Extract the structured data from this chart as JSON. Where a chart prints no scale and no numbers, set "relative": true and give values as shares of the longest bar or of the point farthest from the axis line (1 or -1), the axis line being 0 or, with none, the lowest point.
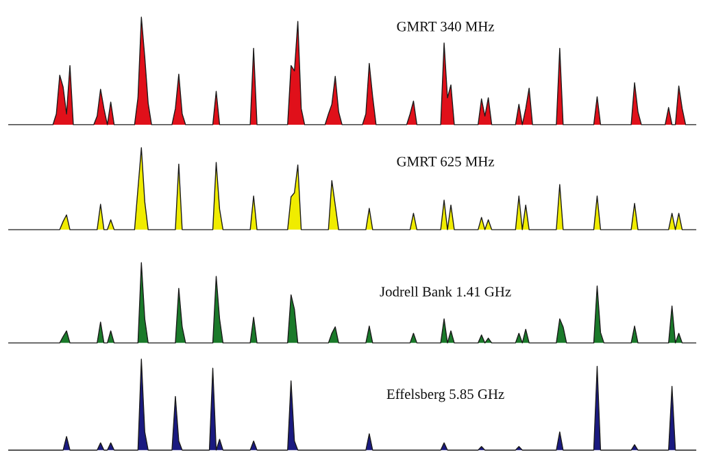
{
  "chart_data": [
    {
      "type": "area",
      "title": "GMRT 340 MHz",
      "relative": true,
      "color": "#e0101a",
      "categories": [
        null,
        null,
        null,
        null,
        null,
        null,
        null,
        null,
        null,
        null,
        null,
        null,
        null,
        null,
        null,
        null,
        null,
        null,
        null,
        null,
        null,
        null,
        null,
        null,
        null,
        null,
        null,
        null,
        null,
        null,
        null,
        null,
        null,
        null,
        null,
        null,
        null,
        null,
        null,
        null,
        null,
        null,
        null,
        null,
        null,
        null,
        null,
        null,
        null,
        null,
        null,
        null,
        null,
        null,
        null,
        null,
        null,
        null,
        null,
        null,
        null,
        null,
        null,
        null,
        null,
        null,
        null,
        null,
        null,
        null,
        null,
        null,
        null,
        null,
        null,
        null,
        null,
        null,
        null,
        null,
        null,
        null,
        null,
        null,
        null,
        null,
        null,
        null,
        null,
        null,
        null,
        null,
        null,
        null,
        null,
        null,
        null,
        null,
        null,
        null,
        null,
        null,
        null,
        null,
        null,
        null,
        null,
        null,
        null,
        null,
        null,
        null,
        null,
        null,
        null,
        null,
        null,
        null,
        null,
        null,
        null,
        null,
        null,
        null,
        null,
        null,
        null,
        null,
        null,
        null,
        null,
        null,
        null,
        null,
        null,
        null,
        null,
        null,
        null,
        null,
        null,
        null,
        null,
        null,
        null,
        null,
        null,
        null,
        null,
        null,
        null,
        null,
        null,
        null,
        null,
        null,
        null,
        null,
        null,
        null,
        null,
        null,
        null,
        null,
        null,
        null,
        null,
        null,
        null,
        null,
        null,
        null,
        null,
        null,
        null,
        null,
        null,
        null,
        null,
        null,
        null,
        null,
        null,
        null,
        null,
        null,
        null,
        null,
        null,
        null,
        null,
        null,
        null,
        null,
        null,
        null,
        null,
        null,
        null,
        null,
        null,
        null,
        null
      ],
      "values": [
        0,
        0,
        0,
        0,
        0,
        0,
        0,
        0,
        0,
        0,
        0,
        0,
        0,
        0,
        0.1,
        0.46,
        0.35,
        0.1,
        0.55,
        0,
        0,
        0,
        0,
        0,
        0,
        0,
        0.08,
        0.33,
        0.15,
        0,
        0.21,
        0,
        0,
        0,
        0,
        0,
        0,
        0,
        0.25,
        1,
        0.63,
        0.2,
        0,
        0,
        0,
        0,
        0,
        0,
        0,
        0.15,
        0.47,
        0.1,
        0,
        0,
        0,
        0,
        0,
        0,
        0,
        0,
        0,
        0.31,
        0,
        0,
        0,
        0,
        0,
        0,
        0,
        0,
        0,
        0,
        0.71,
        0,
        0,
        0,
        0,
        0,
        0,
        0,
        0,
        0,
        0,
        0.55,
        0.5,
        0.96,
        0.15,
        0,
        0,
        0,
        0,
        0,
        0,
        0,
        0.1,
        0.19,
        0.45,
        0.12,
        0,
        0,
        0,
        0,
        0,
        0,
        0,
        0.1,
        0.57,
        0.26,
        0,
        0,
        0,
        0,
        0,
        0,
        0,
        0,
        0,
        0,
        0.1,
        0.22,
        0,
        0,
        0,
        0,
        0,
        0,
        0,
        0,
        0.76,
        0.25,
        0.37,
        0,
        0,
        0,
        0,
        0,
        0,
        0,
        0,
        0.24,
        0.08,
        0.25,
        0,
        0,
        0,
        0,
        0,
        0,
        0,
        0,
        0.19,
        0,
        0.15,
        0.34,
        0,
        0,
        0,
        0,
        0,
        0,
        0,
        0,
        0.71,
        0,
        0,
        0,
        0,
        0,
        0,
        0,
        0,
        0,
        0,
        0.26,
        0,
        0,
        0,
        0,
        0,
        0,
        0,
        0,
        0,
        0,
        0.39,
        0.12,
        0,
        0,
        0,
        0,
        0,
        0,
        0,
        0,
        0.16,
        0,
        0,
        0.36,
        0.15,
        0,
        0,
        0,
        0
      ]
    },
    {
      "type": "area",
      "title": "GMRT 625 MHz",
      "relative": true,
      "color": "#f0ec00",
      "categories": [
        null,
        null,
        null,
        null,
        null,
        null,
        null,
        null,
        null,
        null,
        null,
        null,
        null,
        null,
        null,
        null,
        null,
        null,
        null,
        null,
        null,
        null,
        null,
        null,
        null,
        null,
        null,
        null,
        null,
        null,
        null,
        null,
        null,
        null,
        null,
        null,
        null,
        null,
        null,
        null,
        null,
        null,
        null,
        null,
        null,
        null,
        null,
        null,
        null,
        null,
        null,
        null,
        null,
        null,
        null,
        null,
        null,
        null,
        null,
        null,
        null,
        null,
        null,
        null,
        null,
        null,
        null,
        null,
        null,
        null,
        null,
        null,
        null,
        null,
        null,
        null,
        null,
        null,
        null,
        null,
        null,
        null,
        null,
        null,
        null,
        null,
        null,
        null,
        null,
        null,
        null,
        null,
        null,
        null,
        null,
        null,
        null,
        null,
        null,
        null,
        null,
        null,
        null,
        null,
        null,
        null,
        null,
        null,
        null,
        null,
        null,
        null,
        null,
        null,
        null,
        null,
        null,
        null,
        null,
        null,
        null,
        null,
        null,
        null,
        null,
        null,
        null,
        null,
        null,
        null,
        null,
        null,
        null,
        null,
        null,
        null,
        null,
        null,
        null,
        null,
        null,
        null,
        null,
        null,
        null,
        null,
        null,
        null,
        null,
        null,
        null,
        null,
        null,
        null,
        null,
        null,
        null,
        null,
        null,
        null,
        null,
        null,
        null,
        null,
        null,
        null,
        null,
        null,
        null,
        null,
        null,
        null,
        null,
        null,
        null,
        null,
        null,
        null,
        null,
        null,
        null,
        null,
        null,
        null,
        null,
        null,
        null,
        null,
        null,
        null,
        null,
        null,
        null,
        null,
        null,
        null,
        null,
        null,
        null,
        null,
        null,
        null,
        null
      ],
      "values": [
        0,
        0,
        0,
        0,
        0,
        0,
        0,
        0,
        0,
        0,
        0,
        0,
        0,
        0,
        0,
        0,
        0.1,
        0.18,
        0,
        0,
        0,
        0,
        0,
        0,
        0,
        0,
        0,
        0.31,
        0,
        0,
        0.12,
        0,
        0,
        0,
        0,
        0,
        0,
        0,
        0.5,
        1,
        0.34,
        0,
        0,
        0,
        0,
        0,
        0,
        0,
        0,
        0,
        0.8,
        0,
        0,
        0,
        0,
        0,
        0,
        0,
        0,
        0,
        0,
        0.82,
        0.25,
        0,
        0,
        0,
        0,
        0,
        0,
        0,
        0,
        0,
        0.41,
        0,
        0,
        0,
        0,
        0,
        0,
        0,
        0,
        0,
        0,
        0.4,
        0.45,
        0.79,
        0,
        0,
        0,
        0,
        0,
        0,
        0,
        0,
        0,
        0.6,
        0.3,
        0,
        0,
        0,
        0,
        0,
        0,
        0,
        0,
        0,
        0.26,
        0,
        0,
        0,
        0,
        0,
        0,
        0,
        0,
        0,
        0,
        0,
        0,
        0.2,
        0,
        0,
        0,
        0,
        0,
        0,
        0,
        0,
        0.36,
        0,
        0.3,
        0,
        0,
        0,
        0,
        0,
        0,
        0,
        0,
        0.15,
        0,
        0.12,
        0,
        0,
        0,
        0,
        0,
        0,
        0,
        0,
        0.41,
        0,
        0.3,
        0,
        0,
        0,
        0,
        0,
        0,
        0,
        0,
        0,
        0.55,
        0,
        0,
        0,
        0,
        0,
        0,
        0,
        0,
        0,
        0,
        0.41,
        0,
        0,
        0,
        0,
        0,
        0,
        0,
        0,
        0,
        0,
        0.32,
        0,
        0,
        0,
        0,
        0,
        0,
        0,
        0,
        0,
        0,
        0.2,
        0,
        0.2,
        0,
        0,
        0,
        0,
        0
      ]
    },
    {
      "type": "area",
      "title": "Jodrell Bank 1.41 GHz",
      "relative": true,
      "color": "#1a7a2a",
      "categories": [
        null,
        null,
        null,
        null,
        null,
        null,
        null,
        null,
        null,
        null,
        null,
        null,
        null,
        null,
        null,
        null,
        null,
        null,
        null,
        null,
        null,
        null,
        null,
        null,
        null,
        null,
        null,
        null,
        null,
        null,
        null,
        null,
        null,
        null,
        null,
        null,
        null,
        null,
        null,
        null,
        null,
        null,
        null,
        null,
        null,
        null,
        null,
        null,
        null,
        null,
        null,
        null,
        null,
        null,
        null,
        null,
        null,
        null,
        null,
        null,
        null,
        null,
        null,
        null,
        null,
        null,
        null,
        null,
        null,
        null,
        null,
        null,
        null,
        null,
        null,
        null,
        null,
        null,
        null,
        null,
        null,
        null,
        null,
        null,
        null,
        null,
        null,
        null,
        null,
        null,
        null,
        null,
        null,
        null,
        null,
        null,
        null,
        null,
        null,
        null,
        null,
        null,
        null,
        null,
        null,
        null,
        null,
        null,
        null,
        null,
        null,
        null,
        null,
        null,
        null,
        null,
        null,
        null,
        null,
        null,
        null,
        null,
        null,
        null,
        null,
        null,
        null,
        null,
        null,
        null,
        null,
        null,
        null,
        null,
        null,
        null,
        null,
        null,
        null,
        null,
        null,
        null,
        null,
        null,
        null,
        null,
        null,
        null,
        null,
        null,
        null,
        null,
        null,
        null,
        null,
        null,
        null,
        null,
        null,
        null,
        null,
        null,
        null,
        null,
        null,
        null,
        null,
        null,
        null,
        null,
        null,
        null,
        null,
        null,
        null,
        null,
        null,
        null,
        null,
        null,
        null,
        null,
        null,
        null,
        null,
        null,
        null,
        null,
        null,
        null,
        null,
        null,
        null,
        null,
        null,
        null,
        null,
        null,
        null,
        null,
        null,
        null,
        null
      ],
      "values": [
        0,
        0,
        0,
        0,
        0,
        0,
        0,
        0,
        0,
        0,
        0,
        0,
        0,
        0,
        0,
        0,
        0.08,
        0.15,
        0,
        0,
        0,
        0,
        0,
        0,
        0,
        0,
        0,
        0.26,
        0,
        0,
        0.15,
        0,
        0,
        0,
        0,
        0,
        0,
        0,
        0,
        1,
        0.3,
        0,
        0,
        0,
        0,
        0,
        0,
        0,
        0,
        0,
        0.68,
        0.2,
        0,
        0,
        0,
        0,
        0,
        0,
        0,
        0,
        0,
        0.83,
        0.3,
        0,
        0,
        0,
        0,
        0,
        0,
        0,
        0,
        0,
        0.32,
        0,
        0,
        0,
        0,
        0,
        0,
        0,
        0,
        0,
        0,
        0.6,
        0.42,
        0,
        0,
        0,
        0,
        0,
        0,
        0,
        0,
        0,
        0,
        0.12,
        0.2,
        0,
        0,
        0,
        0,
        0,
        0,
        0,
        0,
        0,
        0.21,
        0,
        0,
        0,
        0,
        0,
        0,
        0,
        0,
        0,
        0,
        0,
        0,
        0.12,
        0,
        0,
        0,
        0,
        0,
        0,
        0,
        0,
        0.3,
        0,
        0.15,
        0,
        0,
        0,
        0,
        0,
        0,
        0,
        0,
        0.1,
        0,
        0.06,
        0,
        0,
        0,
        0,
        0,
        0,
        0,
        0,
        0.12,
        0,
        0.17,
        0,
        0,
        0,
        0,
        0,
        0,
        0,
        0,
        0,
        0.3,
        0.2,
        0,
        0,
        0,
        0,
        0,
        0,
        0,
        0,
        0,
        0.71,
        0.13,
        0,
        0,
        0,
        0,
        0,
        0,
        0,
        0,
        0,
        0.21,
        0,
        0,
        0,
        0,
        0,
        0,
        0,
        0,
        0,
        0,
        0.46,
        0,
        0.12,
        0,
        0,
        0,
        0,
        0
      ]
    },
    {
      "type": "area",
      "title": "Effelsberg 5.85 GHz",
      "relative": true,
      "color": "#1a1a80",
      "categories": [
        null,
        null,
        null,
        null,
        null,
        null,
        null,
        null,
        null,
        null,
        null,
        null,
        null,
        null,
        null,
        null,
        null,
        null,
        null,
        null,
        null,
        null,
        null,
        null,
        null,
        null,
        null,
        null,
        null,
        null,
        null,
        null,
        null,
        null,
        null,
        null,
        null,
        null,
        null,
        null,
        null,
        null,
        null,
        null,
        null,
        null,
        null,
        null,
        null,
        null,
        null,
        null,
        null,
        null,
        null,
        null,
        null,
        null,
        null,
        null,
        null,
        null,
        null,
        null,
        null,
        null,
        null,
        null,
        null,
        null,
        null,
        null,
        null,
        null,
        null,
        null,
        null,
        null,
        null,
        null,
        null,
        null,
        null,
        null,
        null,
        null,
        null,
        null,
        null,
        null,
        null,
        null,
        null,
        null,
        null,
        null,
        null,
        null,
        null,
        null,
        null,
        null,
        null,
        null,
        null,
        null,
        null,
        null,
        null,
        null,
        null,
        null,
        null,
        null,
        null,
        null,
        null,
        null,
        null,
        null,
        null,
        null,
        null,
        null,
        null,
        null,
        null,
        null,
        null,
        null,
        null,
        null,
        null,
        null,
        null,
        null,
        null,
        null,
        null,
        null,
        null,
        null,
        null,
        null,
        null,
        null,
        null,
        null,
        null,
        null,
        null,
        null,
        null,
        null,
        null,
        null,
        null,
        null,
        null,
        null,
        null,
        null,
        null,
        null,
        null,
        null,
        null,
        null,
        null,
        null,
        null,
        null,
        null,
        null,
        null,
        null,
        null,
        null,
        null,
        null,
        null,
        null,
        null,
        null,
        null,
        null,
        null,
        null,
        null,
        null,
        null,
        null,
        null,
        null,
        null,
        null,
        null,
        null,
        null,
        null,
        null,
        null,
        null
      ],
      "values": [
        0,
        0,
        0,
        0,
        0,
        0,
        0,
        0,
        0,
        0,
        0,
        0,
        0,
        0,
        0,
        0,
        0,
        0.15,
        0,
        0,
        0,
        0,
        0,
        0,
        0,
        0,
        0,
        0.08,
        0,
        0,
        0.08,
        0,
        0,
        0,
        0,
        0,
        0,
        0,
        0,
        1,
        0.2,
        0,
        0,
        0,
        0,
        0,
        0,
        0,
        0,
        0.59,
        0.1,
        0,
        0,
        0,
        0,
        0,
        0,
        0,
        0,
        0,
        0.9,
        0,
        0.12,
        0,
        0,
        0,
        0,
        0,
        0,
        0,
        0,
        0,
        0.1,
        0,
        0,
        0,
        0,
        0,
        0,
        0,
        0,
        0,
        0,
        0.76,
        0.1,
        0,
        0,
        0,
        0,
        0,
        0,
        0,
        0,
        0,
        0,
        0,
        0,
        0,
        0,
        0,
        0,
        0,
        0,
        0,
        0,
        0,
        0.18,
        0,
        0,
        0,
        0,
        0,
        0,
        0,
        0,
        0,
        0,
        0,
        0,
        0,
        0,
        0,
        0,
        0,
        0,
        0,
        0,
        0,
        0.08,
        0,
        0,
        0,
        0,
        0,
        0,
        0,
        0,
        0,
        0,
        0.04,
        0,
        0,
        0,
        0,
        0,
        0,
        0,
        0,
        0,
        0,
        0.04,
        0,
        0,
        0,
        0,
        0,
        0,
        0,
        0,
        0,
        0,
        0,
        0.2,
        0,
        0,
        0,
        0,
        0,
        0,
        0,
        0,
        0,
        0,
        0.92,
        0,
        0,
        0,
        0,
        0,
        0,
        0,
        0,
        0,
        0,
        0.06,
        0,
        0,
        0,
        0,
        0,
        0,
        0,
        0,
        0,
        0,
        0.7,
        0,
        0,
        0,
        0,
        0,
        0,
        0
      ]
    }
  ]
}
